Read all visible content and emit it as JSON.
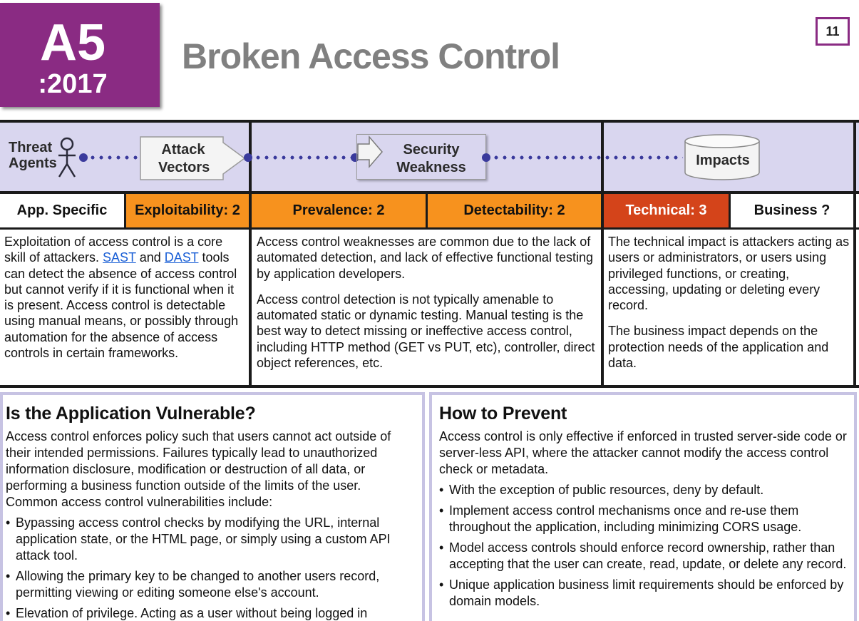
{
  "header": {
    "code": "A5",
    "year": ":2017",
    "title": "Broken Access Control",
    "page_number": "11"
  },
  "flow": {
    "threat_agents": "Threat\nAgents",
    "attack_vectors": "Attack\nVectors",
    "security_weakness": "Security\nWeakness",
    "impacts": "Impacts"
  },
  "scores": {
    "app_specific": "App. Specific",
    "exploitability": "Exploitability: 2",
    "prevalence": "Prevalence: 2",
    "detectability": "Detectability: 2",
    "technical": "Technical: 3",
    "business": "Business ?"
  },
  "descriptions": {
    "exploit": {
      "before_sast": "Exploitation of access control is a core skill of attackers. ",
      "sast": "SAST",
      "between": " and ",
      "dast": "DAST",
      "after_dast": " tools can detect the absence of access control but cannot verify if it is functional when it is present. Access control is detectable using manual means, or possibly through automation for the absence of access controls in certain frameworks."
    },
    "weakness_p1": "Access control weaknesses are common due to the lack of automated detection, and lack of effective functional testing by application developers.",
    "weakness_p2": "Access control detection is not typically amenable to automated static or dynamic testing. Manual testing is the best way to detect missing or ineffective access control, including HTTP method (GET vs PUT, etc), controller, direct object references, etc.",
    "impact_p1": "The technical impact is attackers acting as users or administrators, or users using privileged functions, or creating, accessing, updating or deleting every record.",
    "impact_p2": "The business impact depends on the protection needs of the application and data."
  },
  "vulnerable": {
    "heading": "Is the Application Vulnerable?",
    "intro": "Access control enforces policy such that users cannot act outside of their intended permissions. Failures typically lead to unauthorized information disclosure, modification or destruction of all data, or performing a business function outside of the limits of the user. Common access control vulnerabilities include:",
    "items": [
      "Bypassing access control checks by modifying the URL, internal application state, or the HTML page, or simply using a custom API attack tool.",
      "Allowing the primary key to be changed to another users record, permitting viewing or editing someone else's account.",
      "Elevation of privilege. Acting as a user without being logged in"
    ]
  },
  "prevent": {
    "heading": "How to Prevent",
    "intro": "Access control is only effective if enforced in trusted server-side code or server-less API, where the attacker cannot modify the access control check or metadata.",
    "items": [
      "With the exception of public resources, deny by default.",
      "Implement access control mechanisms once and re-use them throughout the application, including minimizing CORS usage.",
      "Model access controls should enforce record ownership, rather than accepting that the user can create, read, update, or delete any record.",
      "Unique application business limit requirements should be enforced by domain models."
    ]
  },
  "colors": {
    "brand_purple": "#8a2b83",
    "score_orange": "#f7921e",
    "score_red": "#d4441a",
    "band_lavender": "#d9d6ef"
  },
  "icons": [
    "person-icon",
    "arrow-box-icon",
    "database-icon"
  ]
}
